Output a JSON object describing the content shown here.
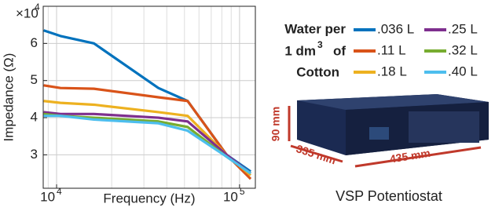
{
  "chart_data": {
    "type": "line",
    "x_label": "Frequency (Hz)",
    "y_label": "Impedance (Ω)",
    "y_multiplier": {
      "base": "×10",
      "exponent": "4"
    },
    "x": [
      8500,
      10500,
      16000,
      36000,
      52000,
      85000,
      115000
    ],
    "xlim": [
      8450,
      122000
    ],
    "log_x": true,
    "xticks": [
      {
        "value": 10000,
        "label": "10",
        "exponent": "4"
      },
      {
        "value": 100000,
        "label": "10",
        "exponent": "5"
      }
    ],
    "ylim": [
      2.1,
      7.0
    ],
    "yticks": [
      3,
      4,
      5,
      6
    ],
    "grid": true,
    "legend_title": [
      "Water per",
      "1 dm",
      "3",
      "of",
      "Cotton"
    ],
    "series": [
      {
        "name": ".036 L",
        "color": "#0072bd",
        "values": [
          6.35,
          6.2,
          6.0,
          4.8,
          4.45,
          3.0,
          2.55
        ]
      },
      {
        "name": ".11 L",
        "color": "#d95319",
        "values": [
          4.87,
          4.8,
          4.78,
          4.55,
          4.45,
          3.0,
          2.35
        ]
      },
      {
        "name": ".18 L",
        "color": "#edb120",
        "values": [
          4.45,
          4.4,
          4.35,
          4.15,
          4.05,
          3.0,
          2.45
        ]
      },
      {
        "name": ".25 L",
        "color": "#7e2f8e",
        "values": [
          4.15,
          4.1,
          4.1,
          4.0,
          3.9,
          3.0,
          2.5
        ]
      },
      {
        "name": ".32 L",
        "color": "#77ac30",
        "values": [
          4.1,
          4.05,
          4.0,
          3.9,
          3.75,
          2.95,
          2.5
        ]
      },
      {
        "name": ".40 L",
        "color": "#4dbeee",
        "values": [
          4.05,
          4.05,
          3.95,
          3.85,
          3.65,
          2.95,
          2.5
        ]
      }
    ]
  },
  "photo": {
    "caption": "VSP Potentiostat",
    "height": "90 mm",
    "depth": "335 mm",
    "width": "435 mm"
  }
}
